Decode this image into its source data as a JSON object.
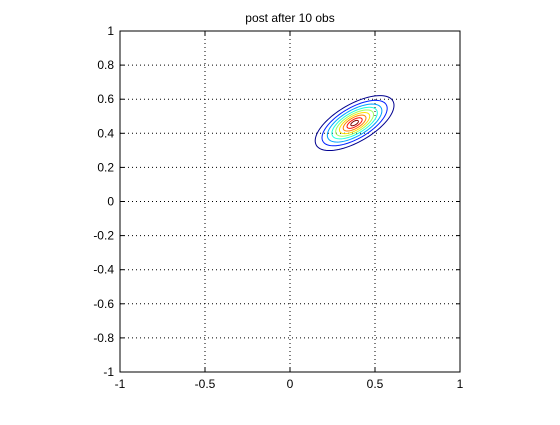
{
  "chart_data": {
    "type": "contour",
    "title": "post after 10 obs",
    "xlabel": "",
    "ylabel": "",
    "xlim": [
      -1,
      1
    ],
    "ylim": [
      -1,
      1
    ],
    "grid": true,
    "grid_style": "dotted",
    "x_ticks": [
      -1,
      -0.5,
      0,
      0.5,
      1
    ],
    "x_tick_labels": [
      "-1",
      "-0.5",
      "0",
      "0.5",
      "1"
    ],
    "y_ticks": [
      -1,
      -0.8,
      -0.6,
      -0.4,
      -0.2,
      0,
      0.2,
      0.4,
      0.6,
      0.8,
      1
    ],
    "y_tick_labels": [
      "-1",
      "-0.8",
      "-0.6",
      "-0.4",
      "-0.2",
      "0",
      "0.2",
      "0.4",
      "0.6",
      "0.8",
      "1"
    ],
    "center": [
      0.38,
      0.46
    ],
    "orientation_deg": 30,
    "contours": [
      {
        "a": 0.26,
        "b": 0.11,
        "color": "#00008f"
      },
      {
        "a": 0.215,
        "b": 0.091,
        "color": "#0020ff"
      },
      {
        "a": 0.18,
        "b": 0.076,
        "color": "#00a0ff"
      },
      {
        "a": 0.15,
        "b": 0.063,
        "color": "#20ffdf"
      },
      {
        "a": 0.125,
        "b": 0.052,
        "color": "#9fff60"
      },
      {
        "a": 0.1,
        "b": 0.042,
        "color": "#ffe000"
      },
      {
        "a": 0.075,
        "b": 0.032,
        "color": "#ff8000"
      },
      {
        "a": 0.05,
        "b": 0.021,
        "color": "#ff1000"
      },
      {
        "a": 0.025,
        "b": 0.011,
        "color": "#800000"
      }
    ]
  }
}
